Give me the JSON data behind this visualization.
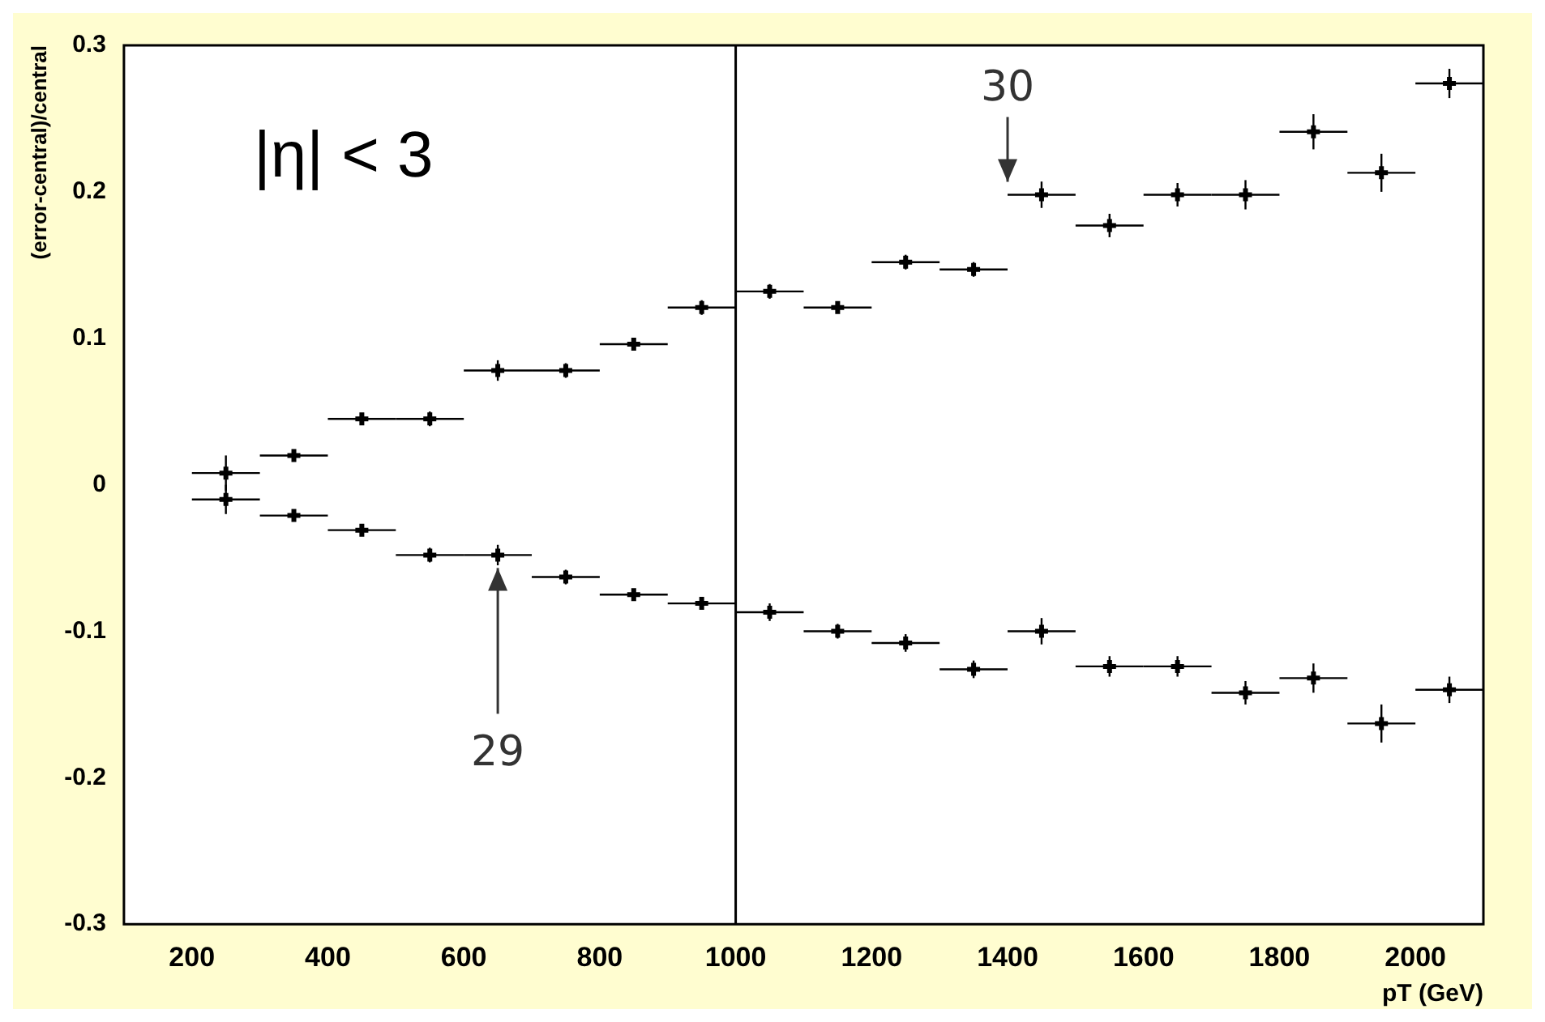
{
  "chart_data": {
    "type": "scatter",
    "xlabel": "pT (GeV)",
    "ylabel": "(error-central)/central",
    "marker": "cross",
    "grid": false,
    "legend": false,
    "x": [
      250,
      350,
      450,
      550,
      650,
      750,
      850,
      950,
      1050,
      1150,
      1250,
      1350,
      1450,
      1550,
      1650,
      1750,
      1850,
      1950,
      2050
    ],
    "series": [
      {
        "color": "#000000",
        "values": [
          0.008,
          0.02,
          0.045,
          0.045,
          0.078,
          0.078,
          0.096,
          0.121,
          0.132,
          0.121,
          0.152,
          0.147,
          0.198,
          0.177,
          0.198,
          0.198,
          0.241,
          0.213,
          0.274
        ],
        "errors": [
          0.012,
          0.004,
          0.003,
          0.005,
          0.007,
          0.005,
          0.004,
          0.005,
          0.005,
          0.004,
          0.005,
          0.005,
          0.009,
          0.008,
          0.008,
          0.01,
          0.012,
          0.013,
          0.01
        ],
        "xerrors": [
          50,
          50,
          50,
          50,
          50,
          50,
          50,
          50,
          50,
          50,
          50,
          50,
          50,
          50,
          50,
          50,
          50,
          50,
          50
        ]
      },
      {
        "color": "#000000",
        "values": [
          -0.01,
          -0.021,
          -0.031,
          -0.048,
          -0.048,
          -0.063,
          -0.075,
          -0.081,
          -0.087,
          -0.1,
          -0.108,
          -0.126,
          -0.1,
          -0.124,
          -0.124,
          -0.142,
          -0.132,
          -0.163,
          -0.14
        ],
        "errors": [
          0.01,
          0.004,
          0.004,
          0.005,
          0.007,
          0.005,
          0.004,
          0.004,
          0.006,
          0.005,
          0.006,
          0.006,
          0.009,
          0.007,
          0.007,
          0.008,
          0.01,
          0.013,
          0.009
        ],
        "xerrors": [
          50,
          50,
          50,
          50,
          50,
          50,
          50,
          50,
          50,
          50,
          50,
          50,
          50,
          50,
          50,
          50,
          50,
          50,
          50
        ]
      }
    ],
    "xlim": [
      100,
      2100
    ],
    "xticks": [
      200,
      400,
      600,
      800,
      1000,
      1200,
      1400,
      1600,
      1800,
      2000
    ],
    "ylim": [
      -0.3,
      0.3
    ],
    "yticks": [
      -0.3,
      -0.2,
      -0.1,
      0,
      0.1,
      0.2,
      0.3
    ],
    "ref_lines": [
      {
        "axis": "x",
        "value": 1000,
        "color": "#000000"
      }
    ],
    "annotations": [
      "|η| < 3",
      {
        "text": "29",
        "x": 650,
        "y": -0.048
      },
      {
        "text": "30",
        "x": 1400,
        "y": 0.198
      }
    ]
  }
}
